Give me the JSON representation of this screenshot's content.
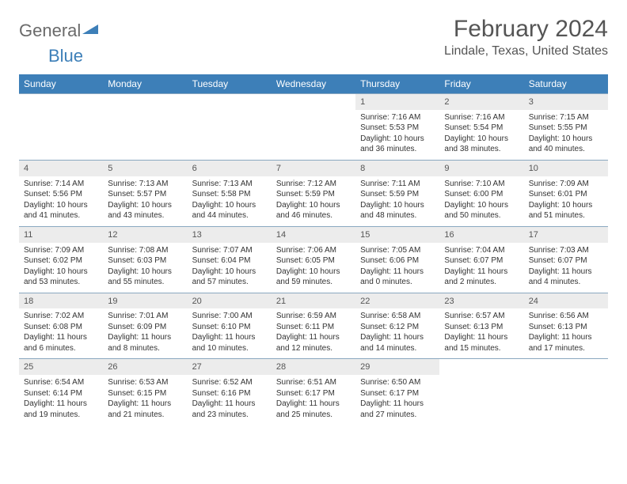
{
  "logo": {
    "word1": "General",
    "word2": "Blue"
  },
  "title": "February 2024",
  "location": "Lindale, Texas, United States",
  "colors": {
    "header_bg": "#3d7fb8",
    "daynum_bg": "#ececec",
    "rule": "#8aa8c0"
  },
  "weekdays": [
    "Sunday",
    "Monday",
    "Tuesday",
    "Wednesday",
    "Thursday",
    "Friday",
    "Saturday"
  ],
  "weeks": [
    [
      null,
      null,
      null,
      null,
      {
        "n": "1",
        "sr": "Sunrise: 7:16 AM",
        "ss": "Sunset: 5:53 PM",
        "dl": "Daylight: 10 hours and 36 minutes."
      },
      {
        "n": "2",
        "sr": "Sunrise: 7:16 AM",
        "ss": "Sunset: 5:54 PM",
        "dl": "Daylight: 10 hours and 38 minutes."
      },
      {
        "n": "3",
        "sr": "Sunrise: 7:15 AM",
        "ss": "Sunset: 5:55 PM",
        "dl": "Daylight: 10 hours and 40 minutes."
      }
    ],
    [
      {
        "n": "4",
        "sr": "Sunrise: 7:14 AM",
        "ss": "Sunset: 5:56 PM",
        "dl": "Daylight: 10 hours and 41 minutes."
      },
      {
        "n": "5",
        "sr": "Sunrise: 7:13 AM",
        "ss": "Sunset: 5:57 PM",
        "dl": "Daylight: 10 hours and 43 minutes."
      },
      {
        "n": "6",
        "sr": "Sunrise: 7:13 AM",
        "ss": "Sunset: 5:58 PM",
        "dl": "Daylight: 10 hours and 44 minutes."
      },
      {
        "n": "7",
        "sr": "Sunrise: 7:12 AM",
        "ss": "Sunset: 5:59 PM",
        "dl": "Daylight: 10 hours and 46 minutes."
      },
      {
        "n": "8",
        "sr": "Sunrise: 7:11 AM",
        "ss": "Sunset: 5:59 PM",
        "dl": "Daylight: 10 hours and 48 minutes."
      },
      {
        "n": "9",
        "sr": "Sunrise: 7:10 AM",
        "ss": "Sunset: 6:00 PM",
        "dl": "Daylight: 10 hours and 50 minutes."
      },
      {
        "n": "10",
        "sr": "Sunrise: 7:09 AM",
        "ss": "Sunset: 6:01 PM",
        "dl": "Daylight: 10 hours and 51 minutes."
      }
    ],
    [
      {
        "n": "11",
        "sr": "Sunrise: 7:09 AM",
        "ss": "Sunset: 6:02 PM",
        "dl": "Daylight: 10 hours and 53 minutes."
      },
      {
        "n": "12",
        "sr": "Sunrise: 7:08 AM",
        "ss": "Sunset: 6:03 PM",
        "dl": "Daylight: 10 hours and 55 minutes."
      },
      {
        "n": "13",
        "sr": "Sunrise: 7:07 AM",
        "ss": "Sunset: 6:04 PM",
        "dl": "Daylight: 10 hours and 57 minutes."
      },
      {
        "n": "14",
        "sr": "Sunrise: 7:06 AM",
        "ss": "Sunset: 6:05 PM",
        "dl": "Daylight: 10 hours and 59 minutes."
      },
      {
        "n": "15",
        "sr": "Sunrise: 7:05 AM",
        "ss": "Sunset: 6:06 PM",
        "dl": "Daylight: 11 hours and 0 minutes."
      },
      {
        "n": "16",
        "sr": "Sunrise: 7:04 AM",
        "ss": "Sunset: 6:07 PM",
        "dl": "Daylight: 11 hours and 2 minutes."
      },
      {
        "n": "17",
        "sr": "Sunrise: 7:03 AM",
        "ss": "Sunset: 6:07 PM",
        "dl": "Daylight: 11 hours and 4 minutes."
      }
    ],
    [
      {
        "n": "18",
        "sr": "Sunrise: 7:02 AM",
        "ss": "Sunset: 6:08 PM",
        "dl": "Daylight: 11 hours and 6 minutes."
      },
      {
        "n": "19",
        "sr": "Sunrise: 7:01 AM",
        "ss": "Sunset: 6:09 PM",
        "dl": "Daylight: 11 hours and 8 minutes."
      },
      {
        "n": "20",
        "sr": "Sunrise: 7:00 AM",
        "ss": "Sunset: 6:10 PM",
        "dl": "Daylight: 11 hours and 10 minutes."
      },
      {
        "n": "21",
        "sr": "Sunrise: 6:59 AM",
        "ss": "Sunset: 6:11 PM",
        "dl": "Daylight: 11 hours and 12 minutes."
      },
      {
        "n": "22",
        "sr": "Sunrise: 6:58 AM",
        "ss": "Sunset: 6:12 PM",
        "dl": "Daylight: 11 hours and 14 minutes."
      },
      {
        "n": "23",
        "sr": "Sunrise: 6:57 AM",
        "ss": "Sunset: 6:13 PM",
        "dl": "Daylight: 11 hours and 15 minutes."
      },
      {
        "n": "24",
        "sr": "Sunrise: 6:56 AM",
        "ss": "Sunset: 6:13 PM",
        "dl": "Daylight: 11 hours and 17 minutes."
      }
    ],
    [
      {
        "n": "25",
        "sr": "Sunrise: 6:54 AM",
        "ss": "Sunset: 6:14 PM",
        "dl": "Daylight: 11 hours and 19 minutes."
      },
      {
        "n": "26",
        "sr": "Sunrise: 6:53 AM",
        "ss": "Sunset: 6:15 PM",
        "dl": "Daylight: 11 hours and 21 minutes."
      },
      {
        "n": "27",
        "sr": "Sunrise: 6:52 AM",
        "ss": "Sunset: 6:16 PM",
        "dl": "Daylight: 11 hours and 23 minutes."
      },
      {
        "n": "28",
        "sr": "Sunrise: 6:51 AM",
        "ss": "Sunset: 6:17 PM",
        "dl": "Daylight: 11 hours and 25 minutes."
      },
      {
        "n": "29",
        "sr": "Sunrise: 6:50 AM",
        "ss": "Sunset: 6:17 PM",
        "dl": "Daylight: 11 hours and 27 minutes."
      },
      null,
      null
    ]
  ]
}
